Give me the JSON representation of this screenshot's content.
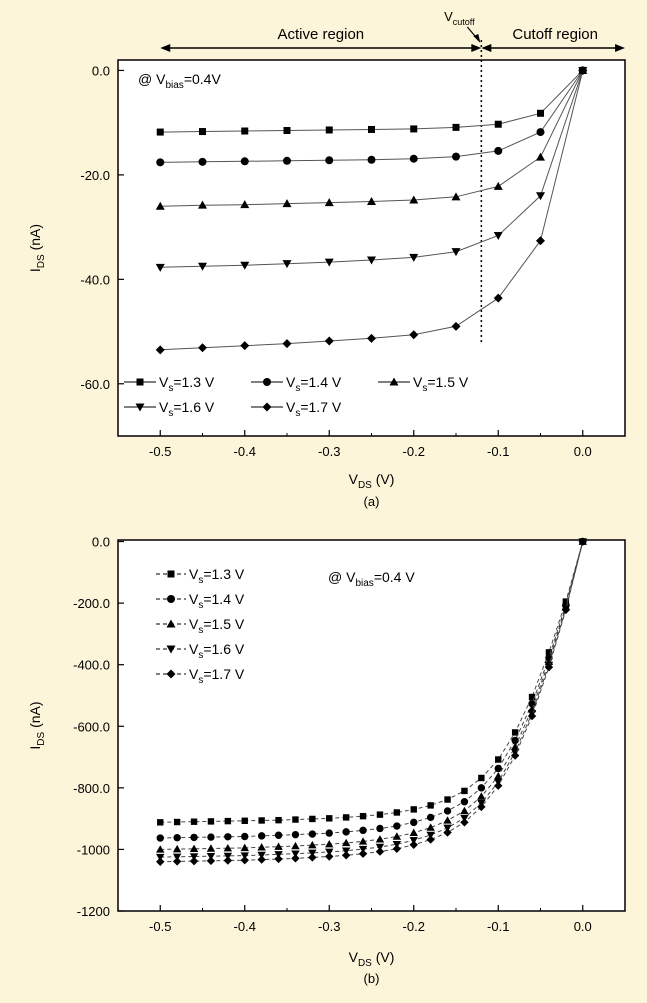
{
  "colors": {
    "background": "#fdf5d9",
    "plot_background": "#ffffff",
    "ink": "#000000",
    "line_a": "#555555",
    "line_b": "#444444"
  },
  "chart_data": [
    {
      "id": "a",
      "type": "line",
      "caption": "(a)",
      "xlabel": {
        "main": "V",
        "sub": "DS",
        "rest": " (V)"
      },
      "ylabel": {
        "main": "I",
        "sub": "DS",
        "rest": " (nA)"
      },
      "xlim": [
        -0.55,
        0.05
      ],
      "ylim": [
        -70,
        2
      ],
      "xticks": [
        -0.5,
        -0.4,
        -0.3,
        -0.2,
        -0.1,
        0.0
      ],
      "xtick_labels": [
        "-0.5",
        "-0.4",
        "-0.3",
        "-0.2",
        "-0.1",
        "0.0"
      ],
      "yticks": [
        0,
        -20,
        -40,
        -60
      ],
      "ytick_labels": [
        "0.0",
        "-20.0",
        "-40.0",
        "-60.0"
      ],
      "annotation": {
        "prefix": "@ V",
        "sub": "bias",
        "suffix": "=0.4V"
      },
      "regions": {
        "active_label": "Active region",
        "cutoff_label": "Cutoff region",
        "cutoff_marker": {
          "main": "V",
          "sub": "cutoff"
        },
        "cutoff_x": -0.12,
        "range": [
          -0.5,
          0.05
        ]
      },
      "x": [
        -0.5,
        -0.45,
        -0.4,
        -0.35,
        -0.3,
        -0.25,
        -0.2,
        -0.15,
        -0.1,
        -0.05,
        0.0
      ],
      "series": [
        {
          "name": "V_s=1.3 V",
          "label": {
            "main": "V",
            "sub": "s",
            "rest": "=1.3 V"
          },
          "marker": "square",
          "values": [
            -11.8,
            -11.7,
            -11.6,
            -11.5,
            -11.4,
            -11.3,
            -11.2,
            -10.9,
            -10.3,
            -8.2,
            0
          ]
        },
        {
          "name": "V_s=1.4 V",
          "label": {
            "main": "V",
            "sub": "s",
            "rest": "=1.4 V"
          },
          "marker": "circle",
          "values": [
            -17.6,
            -17.5,
            -17.4,
            -17.3,
            -17.2,
            -17.1,
            -16.9,
            -16.5,
            -15.4,
            -11.8,
            0
          ]
        },
        {
          "name": "V_s=1.5 V",
          "label": {
            "main": "V",
            "sub": "s",
            "rest": "=1.5 V"
          },
          "marker": "triangle-up",
          "values": [
            -26.0,
            -25.8,
            -25.7,
            -25.5,
            -25.3,
            -25.1,
            -24.8,
            -24.2,
            -22.2,
            -16.6,
            0
          ]
        },
        {
          "name": "V_s=1.6 V",
          "label": {
            "main": "V",
            "sub": "s",
            "rest": "=1.6 V"
          },
          "marker": "triangle-down",
          "values": [
            -37.7,
            -37.5,
            -37.3,
            -37.0,
            -36.7,
            -36.3,
            -35.8,
            -34.7,
            -31.6,
            -24.0,
            0
          ]
        },
        {
          "name": "V_s=1.7 V",
          "label": {
            "main": "V",
            "sub": "s",
            "rest": "=1.7 V"
          },
          "marker": "diamond",
          "values": [
            -53.5,
            -53.1,
            -52.7,
            -52.3,
            -51.8,
            -51.3,
            -50.6,
            -49.0,
            -43.6,
            -32.6,
            0
          ]
        }
      ],
      "legend": {
        "placement": "bottom-left",
        "rows": [
          [
            0,
            1,
            2
          ],
          [
            3,
            4
          ]
        ]
      }
    },
    {
      "id": "b",
      "type": "line",
      "caption": "(b)",
      "xlabel": {
        "main": "V",
        "sub": "DS",
        "rest": " (V)"
      },
      "ylabel": {
        "main": "I",
        "sub": "DS",
        "rest": " (nA)"
      },
      "xlim": [
        -0.55,
        0.05
      ],
      "ylim": [
        -1200,
        5
      ],
      "xticks": [
        -0.5,
        -0.4,
        -0.3,
        -0.2,
        -0.1,
        0.0
      ],
      "xtick_labels": [
        "-0.5",
        "-0.4",
        "-0.3",
        "-0.2",
        "-0.1",
        "0.0"
      ],
      "yticks": [
        0,
        -200,
        -400,
        -600,
        -800,
        -1000,
        -1200
      ],
      "ytick_labels": [
        "0.0",
        "-200.0",
        "-400.0",
        "-600.0",
        "-800.0",
        "-1000",
        "-1200"
      ],
      "annotation": {
        "prefix": "@ V",
        "sub": "bias",
        "suffix": "=0.4 V"
      },
      "x": [
        -0.5,
        -0.48,
        -0.46,
        -0.44,
        -0.42,
        -0.4,
        -0.38,
        -0.36,
        -0.34,
        -0.32,
        -0.3,
        -0.28,
        -0.26,
        -0.24,
        -0.22,
        -0.2,
        -0.18,
        -0.16,
        -0.14,
        -0.12,
        -0.1,
        -0.08,
        -0.06,
        -0.04,
        -0.02,
        0.0
      ],
      "series": [
        {
          "name": "V_s=1.3 V",
          "label": {
            "main": "V",
            "sub": "s",
            "rest": "=1.3 V"
          },
          "marker": "square",
          "values": [
            -912,
            -911,
            -910,
            -909,
            -908,
            -907,
            -906,
            -905,
            -903,
            -901,
            -899,
            -896,
            -892,
            -887,
            -880,
            -870,
            -857,
            -838,
            -810,
            -768,
            -708,
            -620,
            -505,
            -360,
            -195,
            0
          ]
        },
        {
          "name": "V_s=1.4 V",
          "label": {
            "main": "V",
            "sub": "s",
            "rest": "=1.4 V"
          },
          "marker": "circle",
          "values": [
            -963,
            -962,
            -961,
            -960,
            -959,
            -958,
            -956,
            -954,
            -952,
            -950,
            -947,
            -943,
            -938,
            -932,
            -924,
            -912,
            -896,
            -875,
            -845,
            -800,
            -737,
            -646,
            -527,
            -378,
            -205,
            0
          ]
        },
        {
          "name": "V_s=1.5 V",
          "label": {
            "main": "V",
            "sub": "s",
            "rest": "=1.5 V"
          },
          "marker": "triangle-up",
          "values": [
            -1000,
            -999,
            -998,
            -997,
            -996,
            -995,
            -993,
            -991,
            -989,
            -986,
            -983,
            -979,
            -974,
            -967,
            -958,
            -946,
            -929,
            -906,
            -875,
            -828,
            -762,
            -667,
            -544,
            -390,
            -212,
            0
          ]
        },
        {
          "name": "V_s=1.6 V",
          "label": {
            "main": "V",
            "sub": "s",
            "rest": "=1.6 V"
          },
          "marker": "triangle-down",
          "values": [
            -1025,
            -1024,
            -1023,
            -1022,
            -1021,
            -1020,
            -1018,
            -1016,
            -1014,
            -1011,
            -1008,
            -1004,
            -999,
            -992,
            -983,
            -970,
            -953,
            -930,
            -898,
            -849,
            -781,
            -684,
            -558,
            -401,
            -218,
            0
          ]
        },
        {
          "name": "V_s=1.7 V",
          "label": {
            "main": "V",
            "sub": "s",
            "rest": "=1.7 V"
          },
          "marker": "diamond",
          "values": [
            -1040,
            -1039,
            -1038,
            -1037,
            -1036,
            -1035,
            -1033,
            -1031,
            -1029,
            -1026,
            -1023,
            -1019,
            -1014,
            -1007,
            -998,
            -985,
            -968,
            -945,
            -912,
            -862,
            -793,
            -695,
            -567,
            -408,
            -222,
            0
          ]
        }
      ],
      "legend": {
        "placement": "top-left",
        "rows": [
          [
            0
          ],
          [
            1
          ],
          [
            2
          ],
          [
            3
          ],
          [
            4
          ]
        ]
      }
    }
  ]
}
